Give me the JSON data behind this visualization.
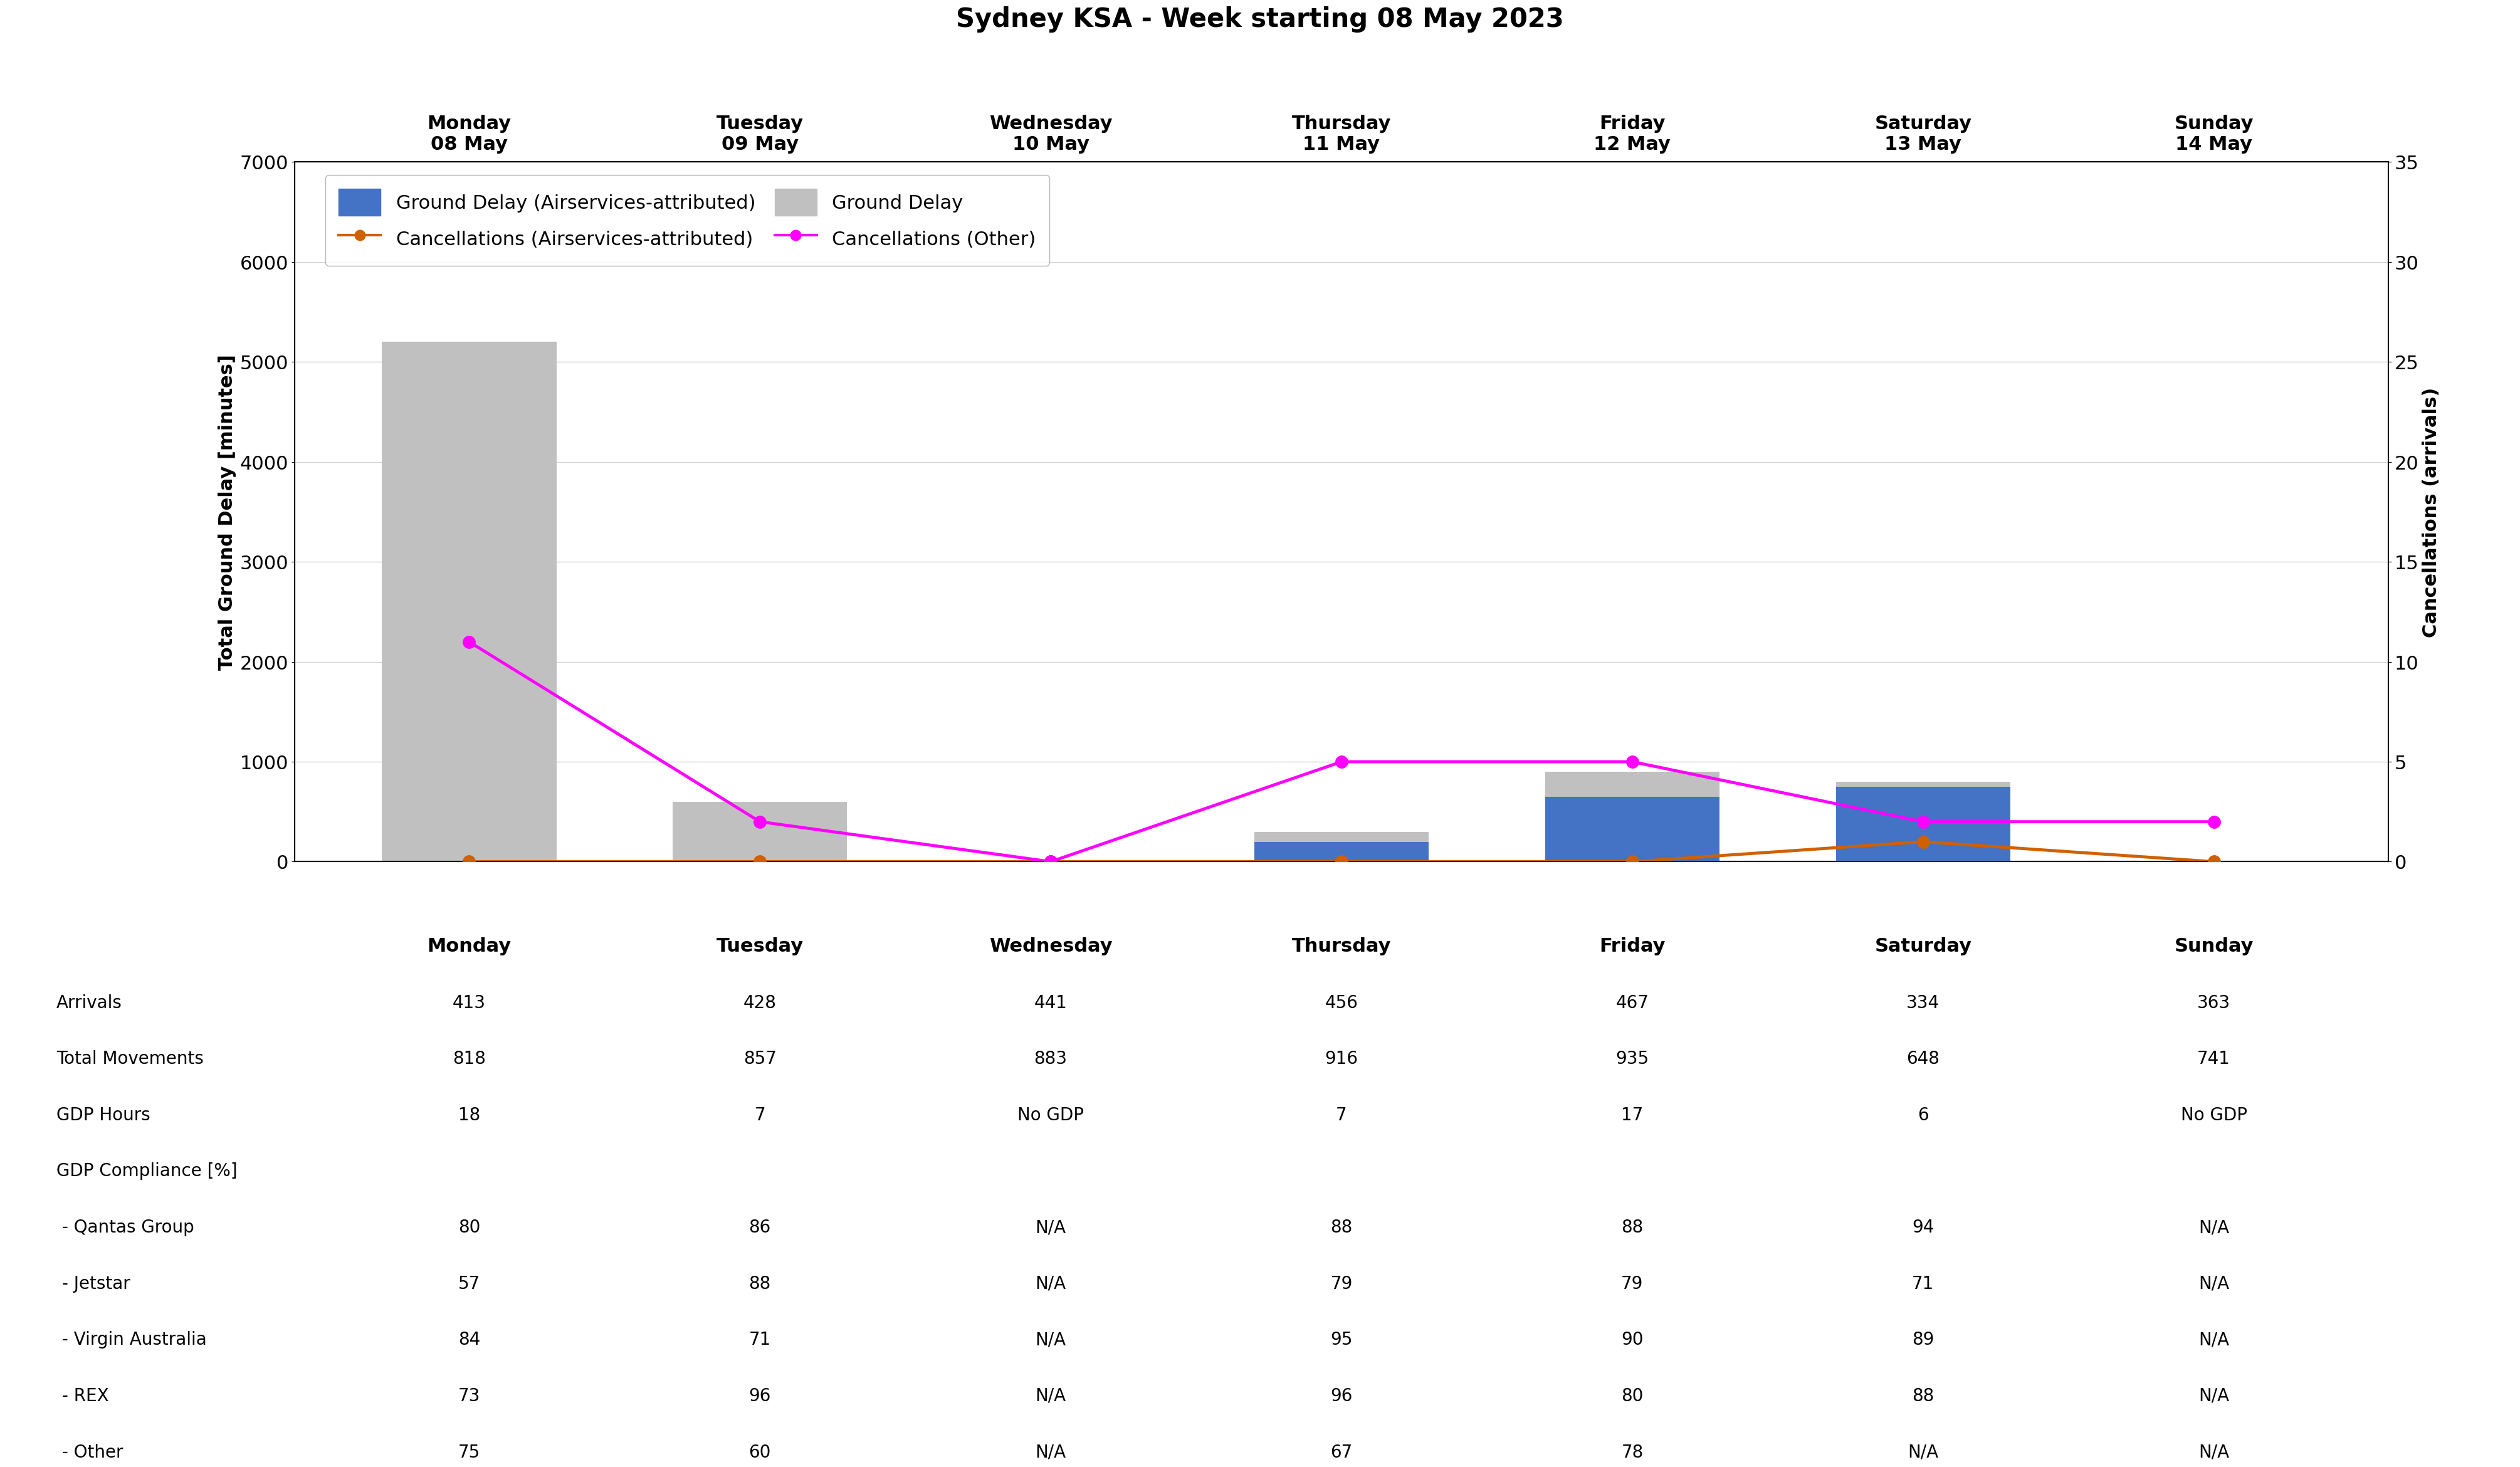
{
  "title": "Sydney KSA - Week starting 08 May 2023",
  "days": [
    "Monday\n08 May",
    "Tuesday\n09 May",
    "Wednesday\n10 May",
    "Thursday\n11 May",
    "Friday\n12 May",
    "Saturday\n13 May",
    "Sunday\n14 May"
  ],
  "x_positions": [
    0,
    1,
    2,
    3,
    4,
    5,
    6
  ],
  "ground_delay_total": [
    5200,
    600,
    0,
    300,
    900,
    800,
    0
  ],
  "ground_delay_airservices": [
    0,
    0,
    0,
    200,
    650,
    750,
    0
  ],
  "cancellations_airservices": [
    0,
    0,
    0,
    0,
    0,
    1,
    0
  ],
  "cancellations_other": [
    11,
    2,
    0,
    5,
    5,
    2,
    2
  ],
  "bar_color_total": "#c0c0c0",
  "bar_color_airservices": "#4472c4",
  "line_color_airservices": "#d06000",
  "line_color_other": "#ff00ff",
  "ylabel_left": "Total Ground Delay [minutes]",
  "ylabel_right": "Cancellations (arrivals)",
  "ylim_left": [
    0,
    7000
  ],
  "ylim_right": [
    0,
    35
  ],
  "yticks_left": [
    0,
    1000,
    2000,
    3000,
    4000,
    5000,
    6000,
    7000
  ],
  "yticks_right": [
    0,
    5,
    10,
    15,
    20,
    25,
    30,
    35
  ],
  "legend_labels": [
    "Ground Delay (Airservices-attributed)",
    "Ground Delay",
    "Cancellations (Airservices-attributed)",
    "Cancellations (Other)"
  ],
  "table_row_labels": [
    "Arrivals",
    "Total Movements",
    "GDP Hours",
    "GDP Compliance [%]",
    " - Qantas Group",
    " - Jetstar",
    " - Virgin Australia",
    " - REX",
    " - Other"
  ],
  "table_cols": [
    "Monday",
    "Tuesday",
    "Wednesday",
    "Thursday",
    "Friday",
    "Saturday",
    "Sunday"
  ],
  "table_data": [
    [
      "413",
      "428",
      "441",
      "456",
      "467",
      "334",
      "363"
    ],
    [
      "818",
      "857",
      "883",
      "916",
      "935",
      "648",
      "741"
    ],
    [
      "18",
      "7",
      "No GDP",
      "7",
      "17",
      "6",
      "No GDP"
    ],
    [
      "",
      "",
      "",
      "",
      "",
      "",
      ""
    ],
    [
      "80",
      "86",
      "N/A",
      "88",
      "88",
      "94",
      "N/A"
    ],
    [
      "57",
      "88",
      "N/A",
      "79",
      "79",
      "71",
      "N/A"
    ],
    [
      "84",
      "71",
      "N/A",
      "95",
      "90",
      "89",
      "N/A"
    ],
    [
      "73",
      "96",
      "N/A",
      "96",
      "80",
      "88",
      "N/A"
    ],
    [
      "75",
      "60",
      "N/A",
      "67",
      "78",
      "N/A",
      "N/A"
    ]
  ],
  "bar_width": 0.6,
  "title_fontsize": 30,
  "axis_label_fontsize": 22,
  "tick_fontsize": 22,
  "legend_fontsize": 22,
  "table_header_fontsize": 22,
  "table_data_fontsize": 20,
  "table_rowlabel_fontsize": 20
}
